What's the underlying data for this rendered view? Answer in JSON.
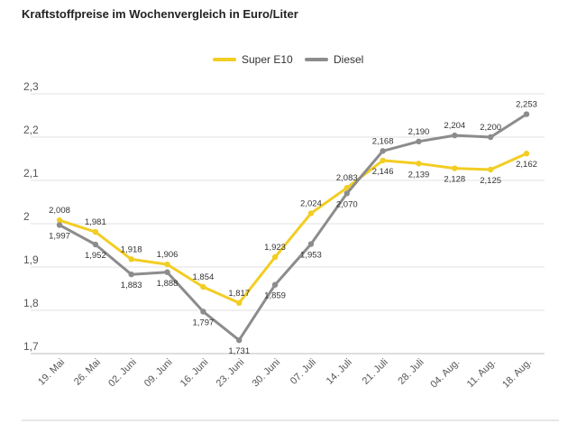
{
  "chart_data": {
    "type": "line",
    "title": "Kraftstoffpreise im Wochenvergleich in Euro/Liter",
    "xlabel": "",
    "ylabel": "",
    "ylim": [
      1.7,
      2.3
    ],
    "yticks": [
      "1,7",
      "1,8",
      "1,9",
      "2",
      "2,1",
      "2,2",
      "2,3"
    ],
    "yticks_values": [
      1.7,
      1.8,
      1.9,
      2.0,
      2.1,
      2.2,
      2.3
    ],
    "grid": true,
    "legend_position": "top-center",
    "categories": [
      "19. Mai",
      "26. Mai",
      "02. Juni",
      "09. Juni",
      "16. Juni",
      "23. Juni",
      "30. Juni",
      "07. Juli",
      "14. Juli",
      "21. Juli",
      "28. Juli",
      "04. Aug.",
      "11. Aug.",
      "18. Aug."
    ],
    "series": [
      {
        "name": "Super E10",
        "color": "#f2cd23",
        "values": [
          2.008,
          1.981,
          1.918,
          1.906,
          1.854,
          1.817,
          1.923,
          2.024,
          2.083,
          2.146,
          2.139,
          2.128,
          2.125,
          2.162
        ],
        "labels": [
          "2,008",
          "1,981",
          "1,918",
          "1,906",
          "1,854",
          "1,817",
          "1,923",
          "2,024",
          "2,083",
          "2,146",
          "2,139",
          "2,128",
          "2,125",
          "2,162"
        ]
      },
      {
        "name": "Diesel",
        "color": "#8c8c8c",
        "values": [
          1.997,
          1.952,
          1.883,
          1.888,
          1.797,
          1.731,
          1.859,
          1.953,
          2.07,
          2.168,
          2.19,
          2.204,
          2.2,
          2.253
        ],
        "labels": [
          "1,997",
          "1,952",
          "1,883",
          "1,888",
          "1,797",
          "1,731",
          "1,859",
          "1,953",
          "2,070",
          "2,168",
          "2,190",
          "2,204",
          "2,200",
          "2,253"
        ]
      }
    ]
  }
}
